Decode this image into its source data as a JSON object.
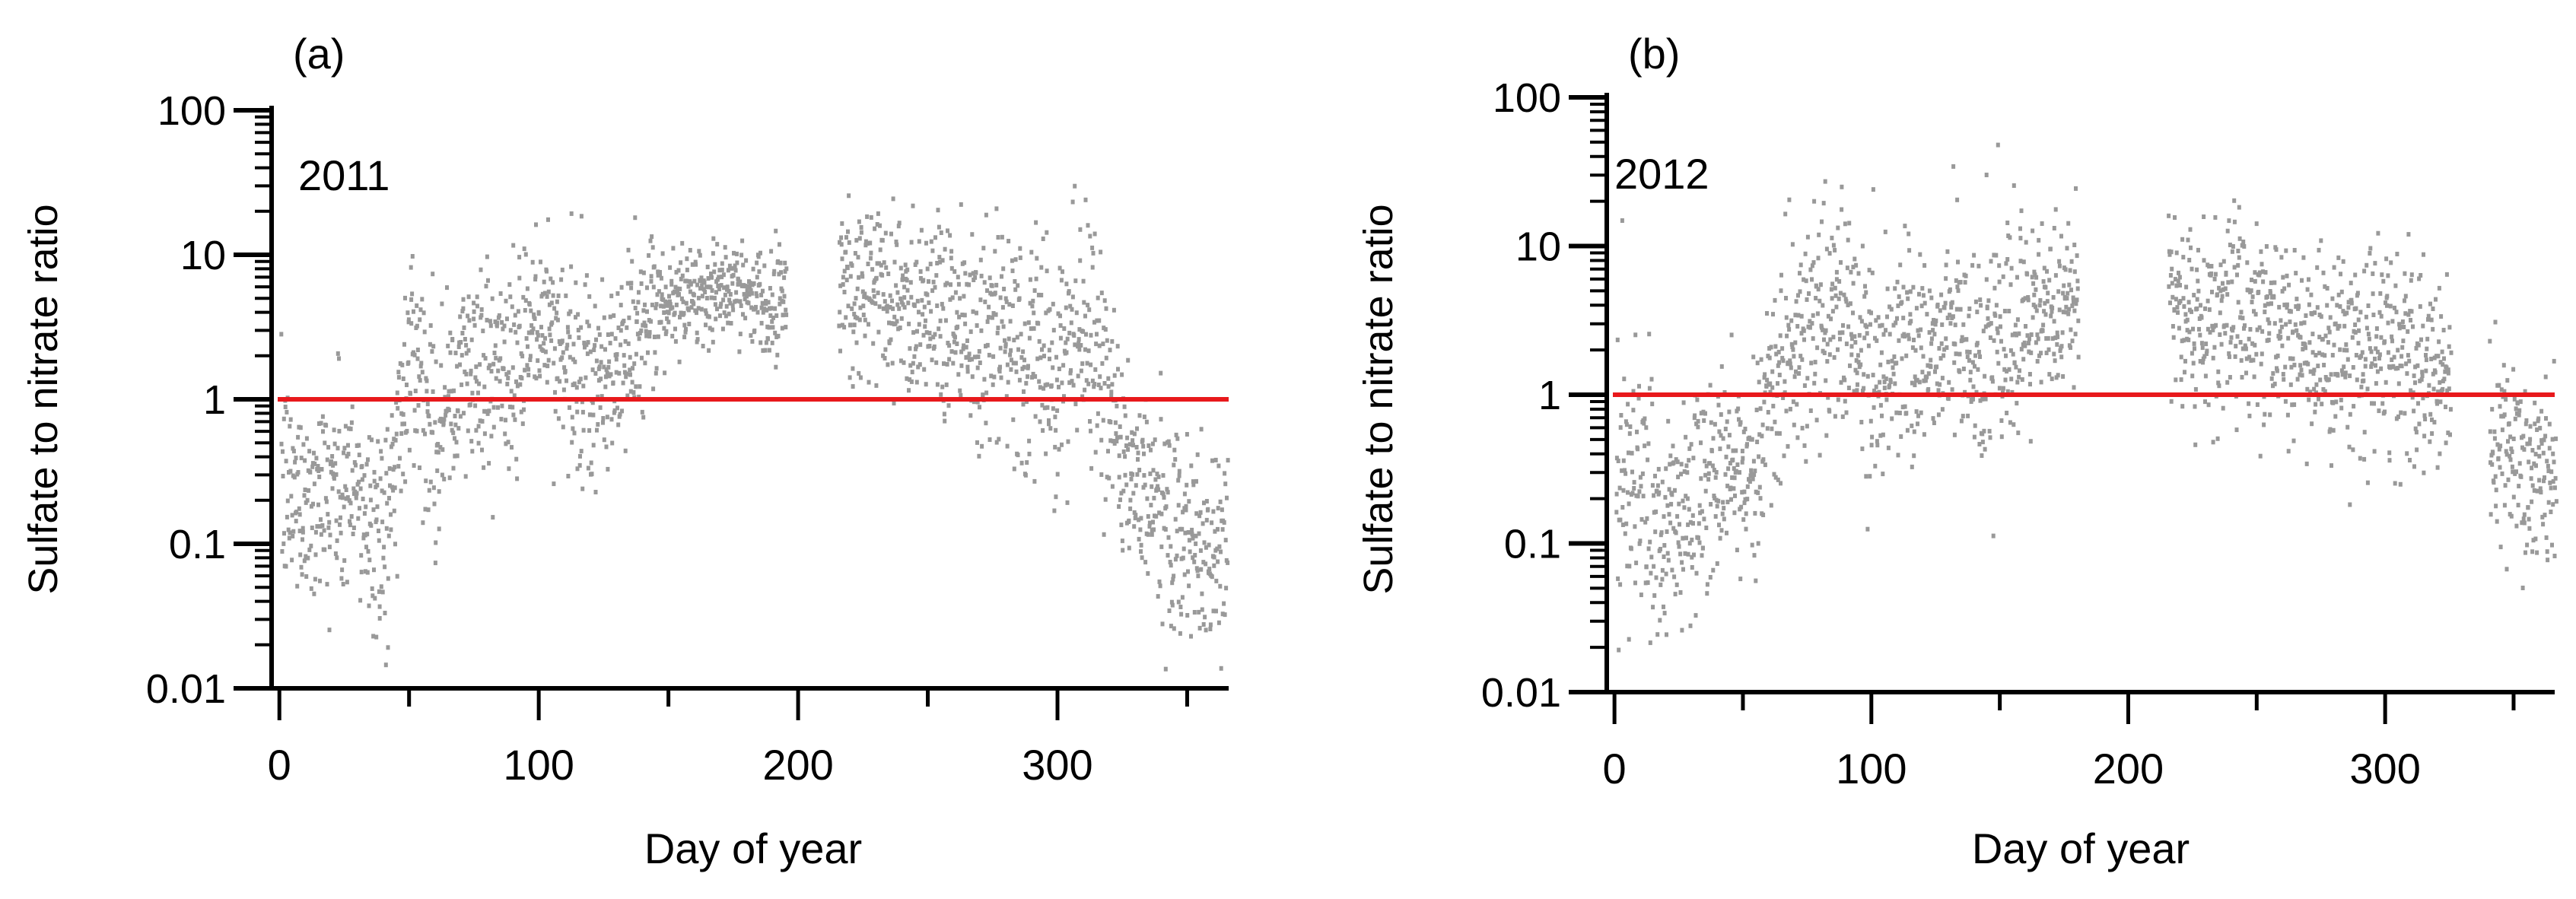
{
  "colors": {
    "points": "#999999",
    "reference_line": "#e8191c",
    "axis": "#000000"
  },
  "chart_data": [
    {
      "type": "scatter",
      "panel_label": "(a)",
      "annotation": "2011",
      "xlabel": "Day of year",
      "ylabel": "Sulfate to nitrate ratio",
      "xlim": [
        -3,
        366
      ],
      "ylim": [
        0.01,
        100
      ],
      "y_scale": "log",
      "x_ticks": [
        0,
        50,
        100,
        150,
        200,
        250,
        300,
        350
      ],
      "x_tick_labels": [
        "0",
        "",
        "100",
        "",
        "200",
        "",
        "300",
        ""
      ],
      "y_ticks": [
        0.01,
        0.1,
        1,
        10,
        100
      ],
      "y_tick_labels": [
        "0.01",
        "0.1",
        "1",
        "10",
        "100"
      ],
      "reference_line": {
        "y": 1
      },
      "grid": false,
      "series": [
        {
          "points_summary": "piecewise envelope of dense scatter: day, median ratio, spread in log10 units",
          "x": [
            0,
            10,
            20,
            30,
            40,
            45,
            50,
            60,
            70,
            80,
            90,
            100,
            110,
            120,
            130,
            140,
            150,
            160,
            170,
            180,
            190,
            195
          ],
          "median": [
            0.25,
            0.22,
            0.25,
            0.2,
            0.12,
            0.5,
            3,
            0.6,
            1.5,
            2,
            1.5,
            4,
            2,
            1,
            2,
            3,
            5,
            6,
            5.5,
            6,
            5,
            6
          ],
          "spread": [
            0.7,
            0.6,
            0.7,
            0.7,
            0.7,
            0.6,
            0.6,
            0.7,
            0.6,
            0.7,
            0.6,
            0.6,
            0.7,
            0.7,
            0.6,
            0.5,
            0.3,
            0.3,
            0.3,
            0.3,
            0.35,
            0.35
          ]
        },
        {
          "x": [
            215,
            225,
            240,
            255,
            270,
            285,
            300,
            310,
            318,
            325,
            335,
            345,
            355,
            365
          ],
          "median": [
            7,
            6,
            5,
            5,
            3,
            2,
            2,
            3,
            1.5,
            0.3,
            0.2,
            0.15,
            0.1,
            0.1
          ],
          "spread": [
            0.7,
            0.6,
            0.6,
            0.7,
            0.7,
            0.7,
            0.8,
            0.7,
            0.8,
            0.6,
            0.6,
            0.7,
            0.7,
            0.7
          ]
        }
      ]
    },
    {
      "type": "scatter",
      "panel_label": "(b)",
      "annotation": "2012",
      "xlabel": "Day of year",
      "ylabel": "Sulfate to nitrate ratio",
      "xlim": [
        -3,
        366
      ],
      "ylim": [
        0.01,
        100
      ],
      "y_scale": "log",
      "x_ticks": [
        0,
        50,
        100,
        150,
        200,
        250,
        300,
        350
      ],
      "x_tick_labels": [
        "0",
        "",
        "100",
        "",
        "200",
        "",
        "300",
        ""
      ],
      "y_ticks": [
        0.01,
        0.1,
        1,
        10,
        100
      ],
      "y_tick_labels": [
        "0.01",
        "0.1",
        "1",
        "10",
        "100"
      ],
      "reference_line": {
        "y": 1
      },
      "grid": false,
      "series": [
        {
          "x": [
            0,
            10,
            20,
            30,
            40,
            50,
            60,
            70,
            80,
            90,
            100,
            110,
            120,
            130,
            140,
            150,
            160,
            170,
            180
          ],
          "median": [
            0.4,
            0.2,
            0.1,
            0.2,
            0.3,
            0.3,
            1,
            2,
            4,
            3,
            1.5,
            2,
            2,
            3,
            2,
            2,
            2.5,
            4,
            5
          ],
          "spread": [
            0.8,
            0.8,
            0.8,
            0.7,
            0.6,
            0.6,
            0.7,
            0.7,
            0.6,
            0.7,
            0.8,
            0.7,
            0.6,
            0.6,
            0.7,
            0.7,
            0.7,
            0.5,
            0.5
          ]
        },
        {
          "x": [
            215,
            225,
            240,
            255,
            270,
            285,
            300,
            315,
            325
          ],
          "median": [
            5,
            3,
            4,
            3,
            2,
            2,
            2,
            1.5,
            1.5
          ],
          "spread": [
            0.4,
            0.6,
            0.6,
            0.6,
            0.6,
            0.6,
            0.6,
            0.7,
            0.6
          ]
        },
        {
          "x": [
            340,
            350,
            360,
            366
          ],
          "median": [
            0.5,
            0.3,
            0.3,
            0.3
          ],
          "spread": [
            0.5,
            0.6,
            0.6,
            0.6
          ]
        }
      ]
    }
  ]
}
